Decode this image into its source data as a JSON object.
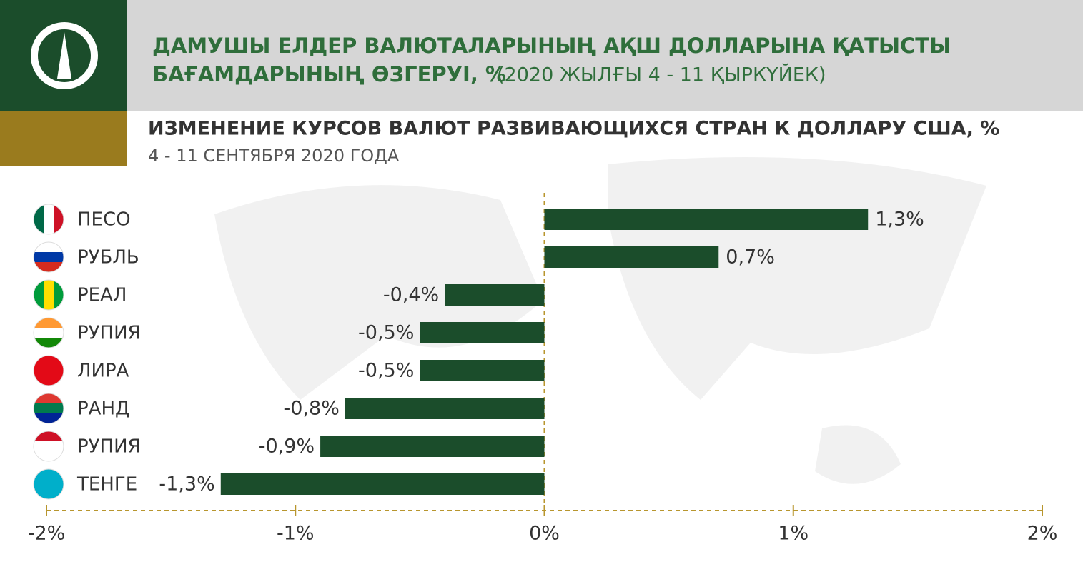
{
  "header": {
    "title_line1": "ДАМУШЫ ЕЛДЕР ВАЛЮТАЛАРЫНЫҢ АҚШ ДОЛЛАРЫНА ҚАТЫСТЫ",
    "title_line2": "БАҒАМДАРЫНЫҢ ӨЗГЕРУІ, %",
    "title_period": "(2020 ЖЫЛҒЫ 4 - 11 ҚЫРКҮЙЕК)"
  },
  "chart_data": {
    "type": "hbar",
    "title": "ИЗМЕНЕНИЕ КУРСОВ ВАЛЮТ  РАЗВИВАЮЩИХСЯ СТРАН К ДОЛЛАРУ США, %",
    "subtitle": "4 - 11 СЕНТЯБРЯ 2020 ГОДА",
    "categories": [
      "ПЕСО",
      "РУБЛЬ",
      "РЕАЛ",
      "РУПИЯ",
      "ЛИРА",
      "РАНД",
      "РУПИЯ",
      "ТЕНГЕ"
    ],
    "values": [
      1.3,
      0.7,
      -0.4,
      -0.5,
      -0.5,
      -0.8,
      -0.9,
      -1.3
    ],
    "value_labels": [
      "1,3%",
      "0,7%",
      "-0,4%",
      "-0,5%",
      "-0,5%",
      "-0,8%",
      "-0,9%",
      "-1,3%"
    ],
    "color": "#1b4d2b",
    "xlim": [
      -2,
      2
    ],
    "xticks": [
      {
        "value": -2,
        "label": "-2%"
      },
      {
        "value": -1,
        "label": "-1%"
      },
      {
        "value": 0,
        "label": "0%"
      },
      {
        "value": 1,
        "label": "1%"
      },
      {
        "value": 2,
        "label": "2%"
      }
    ]
  }
}
